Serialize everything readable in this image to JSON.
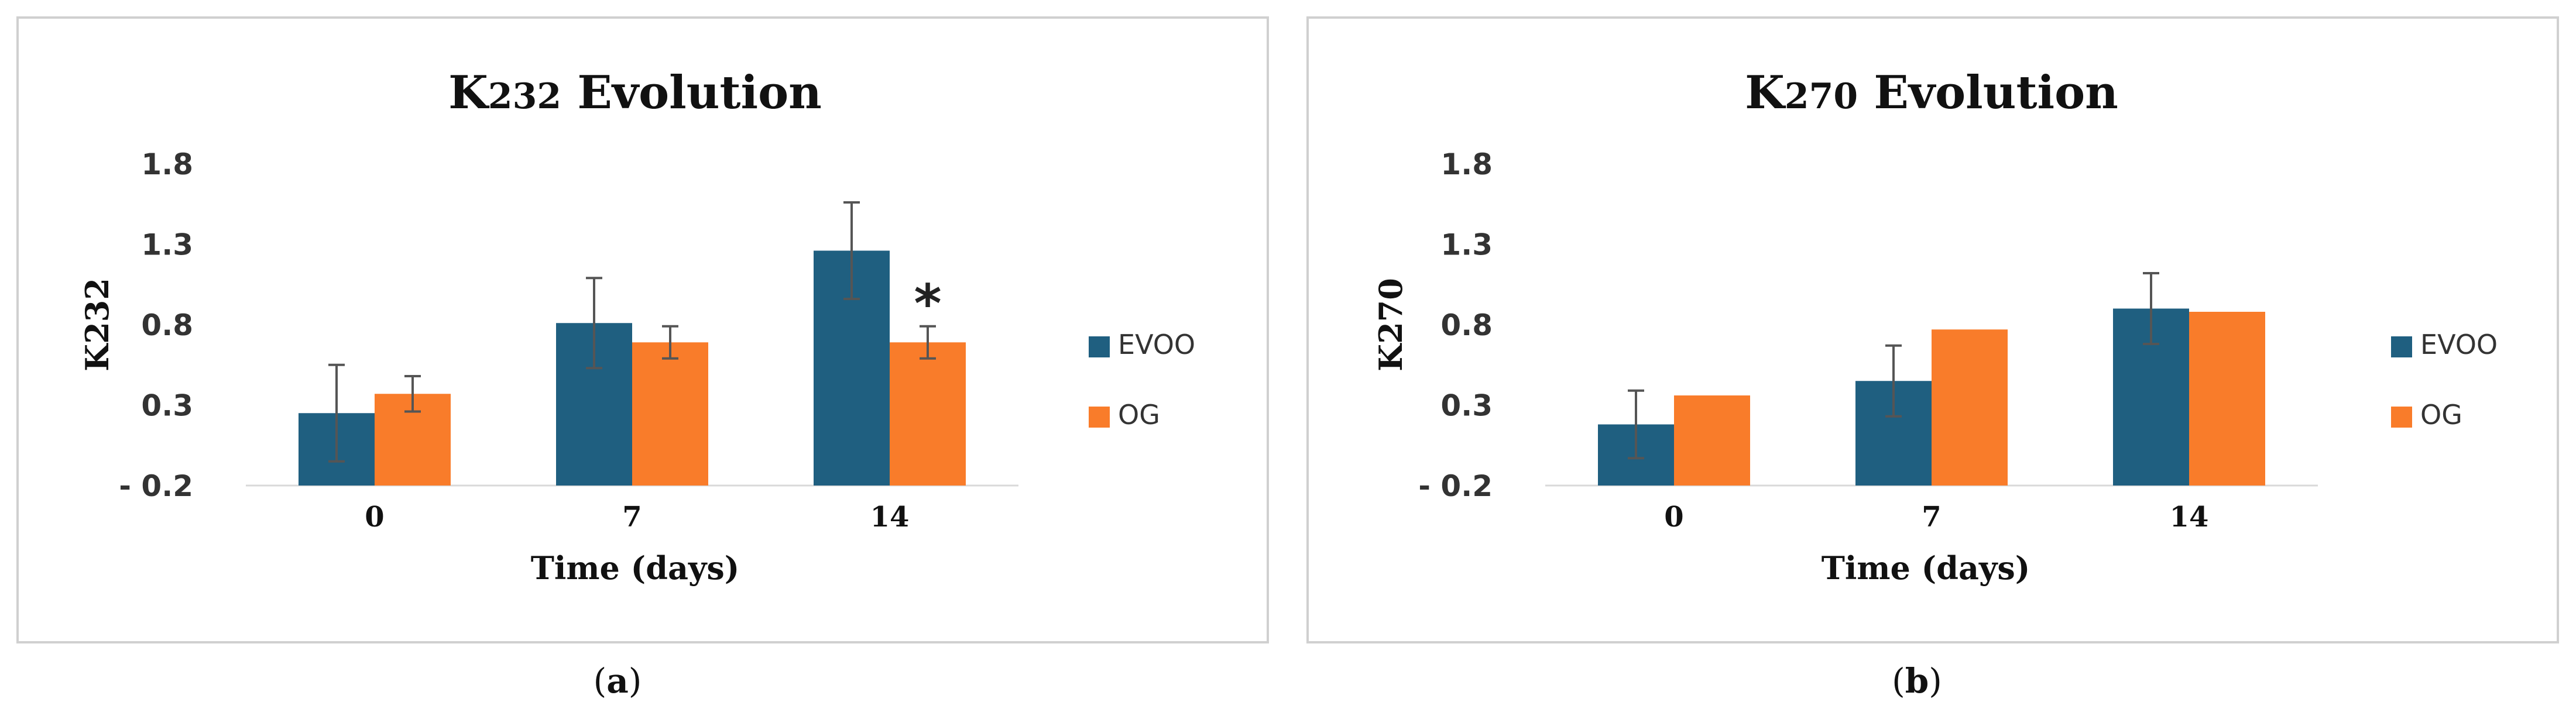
{
  "colors": {
    "evoo": "#1f5f80",
    "og": "#f97c2a",
    "errorbar": "#555555"
  },
  "panels": [
    {
      "caption_letter": "a",
      "chart_data": {
        "type": "bar",
        "title_main": "K",
        "title_sub": "232",
        "title_rest": " Evolution",
        "xlabel": "Time (days)",
        "ylabel": "K232",
        "categories": [
          "0",
          "7",
          "14"
        ],
        "yticks": [
          "1.8",
          "1.3",
          "0.8",
          "0.3",
          "- 0.2"
        ],
        "ylim": [
          -0.2,
          1.8
        ],
        "legend_position": "right",
        "series": [
          {
            "name": "EVOO",
            "values": [
              0.25,
              0.81,
              1.26
            ],
            "errors": [
              0.3,
              0.28,
              0.3
            ]
          },
          {
            "name": "OG",
            "values": [
              0.37,
              0.69,
              0.69
            ],
            "errors": [
              0.11,
              0.1,
              0.1
            ]
          }
        ],
        "annotation": {
          "text": "*",
          "category": "14",
          "series": "OG"
        }
      }
    },
    {
      "caption_letter": "b",
      "chart_data": {
        "type": "bar",
        "title_main": "K",
        "title_sub": "270",
        "title_rest": "  Evolution",
        "xlabel": "Time (days)",
        "ylabel": "K270",
        "categories": [
          "0",
          "7",
          "14"
        ],
        "yticks": [
          "1.8",
          "1.3",
          "0.8",
          "0.3",
          "- 0.2"
        ],
        "ylim": [
          -0.2,
          1.8
        ],
        "legend_position": "right",
        "series": [
          {
            "name": "EVOO",
            "values": [
              0.18,
              0.45,
              0.9
            ],
            "errors": [
              0.21,
              0.22,
              0.22
            ]
          },
          {
            "name": "OG",
            "values": [
              0.36,
              0.77,
              0.88
            ],
            "errors": [
              0,
              0,
              0
            ]
          }
        ]
      }
    }
  ]
}
